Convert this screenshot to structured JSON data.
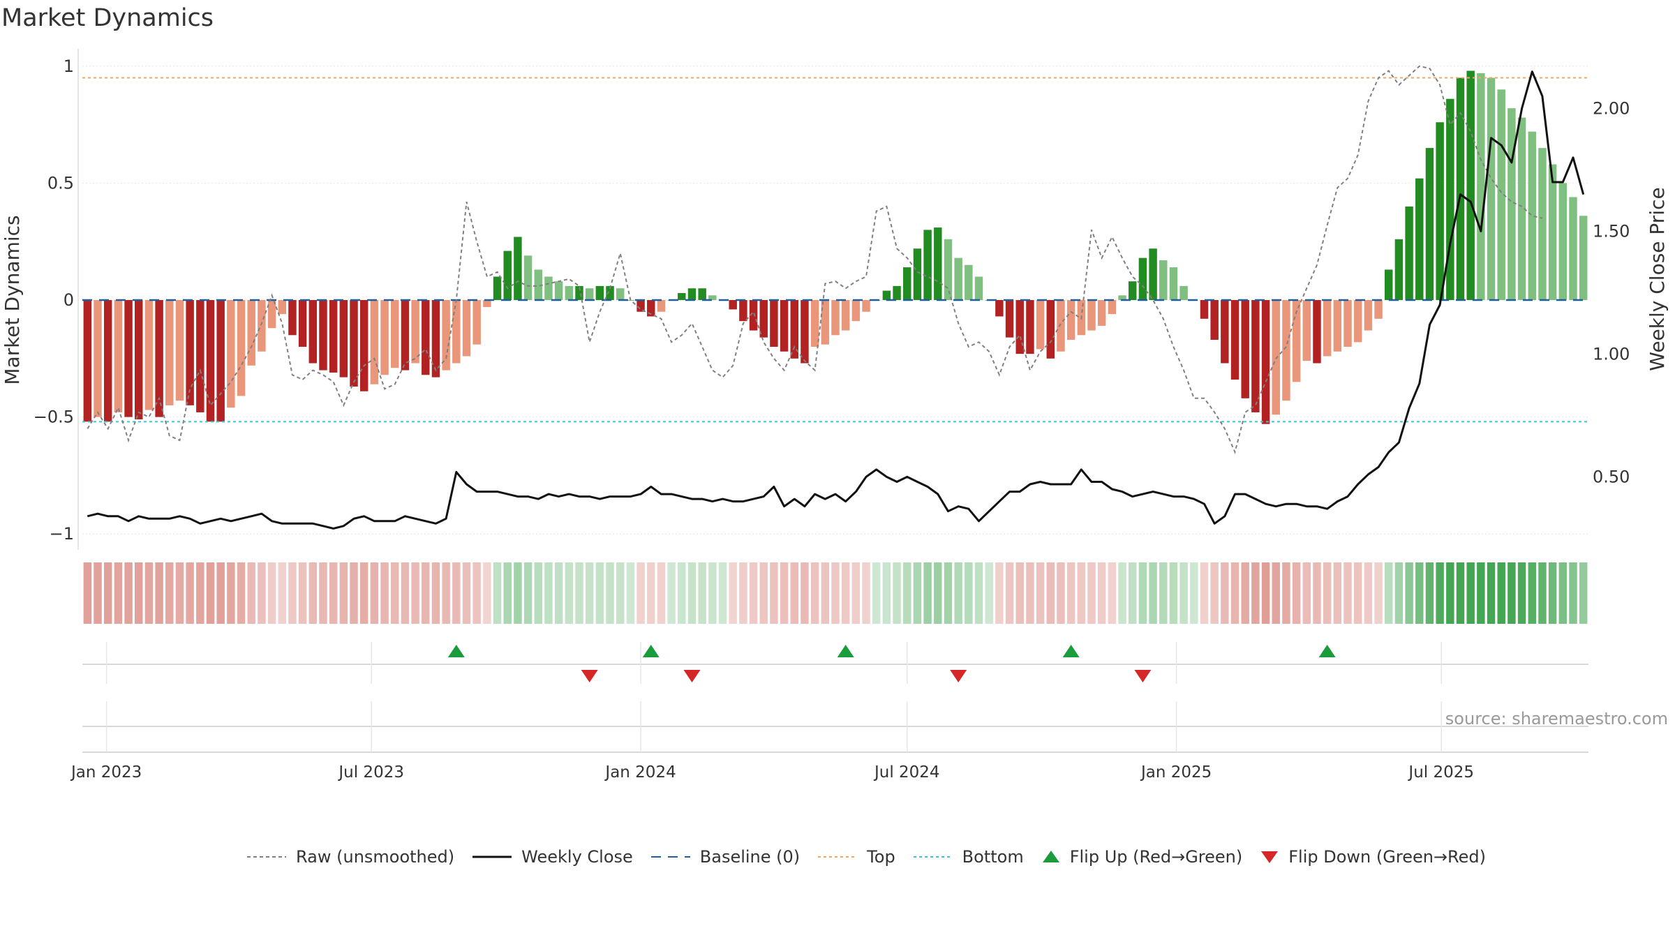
{
  "title": "Market Dynamics",
  "source": "source: sharemaestro.com",
  "colors": {
    "strong_red": "#b22222",
    "light_red": "#e9967a",
    "strong_green": "#228b22",
    "light_green": "#7fbf7f",
    "top_line": "#f4a460",
    "bottom_line": "#40c4d8",
    "baseline": "#1f5f9e",
    "raw": "#808080",
    "close": "#111111",
    "flip_up": "#1a9c3c",
    "flip_down": "#d62728"
  },
  "chart_data": {
    "type": "bar",
    "x_start": "2022-12-19",
    "x_step_days": 7,
    "x_ticks": [
      "Jan 2023",
      "Jul 2023",
      "Jan 2024",
      "Jul 2024",
      "Jan 2025",
      "Jul 2025"
    ],
    "x_tick_dates": [
      "2023-01-01",
      "2023-07-01",
      "2024-01-01",
      "2024-07-01",
      "2025-01-01",
      "2025-07-01"
    ],
    "ylabel_left": "Market Dynamics",
    "ylabel_right": "Weekly Close Price",
    "ylim_left": [
      -1.05,
      1.05
    ],
    "ylim_right": [
      0.22,
      2.22
    ],
    "yticks_left": [
      {
        "value": 1,
        "label": "1"
      },
      {
        "value": 0.5,
        "label": "0.5"
      },
      {
        "value": 0,
        "label": "0"
      },
      {
        "value": -0.5,
        "label": "−0.5"
      },
      {
        "value": -1,
        "label": "−1"
      }
    ],
    "yticks_right": [
      {
        "value": 2.0,
        "label": "2.00"
      },
      {
        "value": 1.5,
        "label": "1.50"
      },
      {
        "value": 1.0,
        "label": "1.00"
      },
      {
        "value": 0.5,
        "label": "0.50"
      }
    ],
    "top_threshold": 0.95,
    "bottom_threshold": -0.52,
    "baseline": 0,
    "dynamics": [
      -0.52,
      -0.5,
      -0.52,
      -0.48,
      -0.5,
      -0.51,
      -0.47,
      -0.5,
      -0.45,
      -0.43,
      -0.45,
      -0.48,
      -0.52,
      -0.52,
      -0.46,
      -0.41,
      -0.28,
      -0.22,
      -0.12,
      -0.06,
      -0.15,
      -0.2,
      -0.27,
      -0.3,
      -0.31,
      -0.33,
      -0.37,
      -0.39,
      -0.36,
      -0.32,
      -0.29,
      -0.3,
      -0.27,
      -0.32,
      -0.33,
      -0.3,
      -0.27,
      -0.24,
      -0.19,
      -0.03,
      0.1,
      0.21,
      0.27,
      0.19,
      0.13,
      0.1,
      0.08,
      0.06,
      0.06,
      0.05,
      0.06,
      0.06,
      0.05,
      0.0,
      -0.05,
      -0.07,
      -0.05,
      0.0,
      0.03,
      0.05,
      0.05,
      0.02,
      0.0,
      -0.04,
      -0.09,
      -0.13,
      -0.16,
      -0.2,
      -0.22,
      -0.25,
      -0.27,
      -0.2,
      -0.19,
      -0.15,
      -0.13,
      -0.09,
      -0.05,
      0.0,
      0.04,
      0.06,
      0.14,
      0.22,
      0.3,
      0.31,
      0.26,
      0.18,
      0.15,
      0.1,
      0.0,
      -0.07,
      -0.16,
      -0.23,
      -0.23,
      -0.21,
      -0.25,
      -0.22,
      -0.17,
      -0.15,
      -0.13,
      -0.11,
      -0.06,
      0.02,
      0.08,
      0.18,
      0.22,
      0.17,
      0.14,
      0.06,
      0.0,
      -0.08,
      -0.17,
      -0.27,
      -0.34,
      -0.42,
      -0.48,
      -0.53,
      -0.49,
      -0.43,
      -0.35,
      -0.26,
      -0.27,
      -0.24,
      -0.22,
      -0.2,
      -0.18,
      -0.13,
      -0.08,
      0.13,
      0.26,
      0.4,
      0.52,
      0.65,
      0.76,
      0.86,
      0.95,
      0.98,
      0.97,
      0.95,
      0.9,
      0.82,
      0.78,
      0.72,
      0.65,
      0.58,
      0.5,
      0.44,
      0.36
    ],
    "raw": [
      -0.55,
      -0.48,
      -0.55,
      -0.46,
      -0.6,
      -0.48,
      -0.5,
      -0.42,
      -0.58,
      -0.6,
      -0.38,
      -0.3,
      -0.45,
      -0.4,
      -0.35,
      -0.28,
      -0.2,
      -0.1,
      0.02,
      -0.1,
      -0.32,
      -0.34,
      -0.3,
      -0.32,
      -0.35,
      -0.45,
      -0.35,
      -0.28,
      -0.25,
      -0.38,
      -0.36,
      -0.27,
      -0.25,
      -0.21,
      -0.3,
      -0.25,
      0.0,
      0.42,
      0.25,
      0.1,
      0.12,
      0.05,
      0.08,
      0.06,
      0.06,
      0.07,
      0.08,
      0.09,
      0.06,
      -0.18,
      -0.05,
      0.05,
      0.2,
      0.0,
      -0.04,
      -0.06,
      -0.08,
      -0.18,
      -0.15,
      -0.1,
      -0.2,
      -0.3,
      -0.33,
      -0.28,
      -0.1,
      -0.05,
      -0.18,
      -0.25,
      -0.3,
      -0.2,
      -0.26,
      -0.3,
      0.07,
      0.08,
      0.05,
      0.08,
      0.1,
      0.38,
      0.4,
      0.22,
      0.18,
      0.12,
      0.1,
      0.08,
      0.05,
      -0.1,
      -0.2,
      -0.18,
      -0.22,
      -0.32,
      -0.2,
      -0.15,
      -0.3,
      -0.22,
      -0.18,
      -0.1,
      -0.05,
      -0.08,
      0.3,
      0.18,
      0.27,
      0.18,
      0.1,
      0.06,
      0.0,
      -0.08,
      -0.2,
      -0.3,
      -0.42,
      -0.42,
      -0.48,
      -0.55,
      -0.65,
      -0.48,
      -0.45,
      -0.35,
      -0.25,
      -0.2,
      -0.05,
      0.05,
      0.15,
      0.32,
      0.48,
      0.52,
      0.62,
      0.85,
      0.95,
      0.98,
      0.92,
      0.96,
      1.0,
      0.99,
      0.92,
      0.75,
      0.8,
      0.72,
      0.6,
      0.52,
      0.46,
      0.42,
      0.4,
      0.36,
      0.35
    ],
    "weekly_close": [
      0.34,
      0.35,
      0.34,
      0.34,
      0.32,
      0.34,
      0.33,
      0.33,
      0.33,
      0.34,
      0.33,
      0.31,
      0.32,
      0.33,
      0.32,
      0.33,
      0.34,
      0.35,
      0.32,
      0.31,
      0.31,
      0.31,
      0.31,
      0.3,
      0.29,
      0.3,
      0.33,
      0.34,
      0.32,
      0.32,
      0.32,
      0.34,
      0.33,
      0.32,
      0.31,
      0.33,
      0.52,
      0.47,
      0.44,
      0.44,
      0.44,
      0.43,
      0.42,
      0.42,
      0.41,
      0.43,
      0.42,
      0.43,
      0.42,
      0.42,
      0.41,
      0.42,
      0.42,
      0.42,
      0.43,
      0.46,
      0.43,
      0.43,
      0.42,
      0.41,
      0.41,
      0.4,
      0.41,
      0.4,
      0.4,
      0.41,
      0.42,
      0.46,
      0.38,
      0.41,
      0.38,
      0.43,
      0.41,
      0.43,
      0.4,
      0.44,
      0.5,
      0.53,
      0.5,
      0.48,
      0.5,
      0.48,
      0.46,
      0.43,
      0.36,
      0.38,
      0.37,
      0.32,
      0.36,
      0.4,
      0.44,
      0.44,
      0.47,
      0.48,
      0.47,
      0.47,
      0.47,
      0.53,
      0.48,
      0.48,
      0.45,
      0.44,
      0.42,
      0.43,
      0.44,
      0.43,
      0.42,
      0.42,
      0.41,
      0.39,
      0.31,
      0.34,
      0.43,
      0.43,
      0.41,
      0.39,
      0.38,
      0.39,
      0.39,
      0.38,
      0.38,
      0.37,
      0.4,
      0.42,
      0.47,
      0.51,
      0.54,
      0.6,
      0.64,
      0.78,
      0.88,
      1.12,
      1.2,
      1.45,
      1.65,
      1.62,
      1.5,
      1.88,
      1.85,
      1.78,
      2.0,
      2.15,
      2.05,
      1.7,
      1.7,
      1.8,
      1.65
    ],
    "flips_up": [
      "2023-08-28",
      "2024-01-08",
      "2024-05-20",
      "2024-10-21",
      "2025-04-14"
    ],
    "flips_down": [
      "2023-11-27",
      "2024-02-05",
      "2024-08-05",
      "2024-12-09"
    ],
    "legend": [
      {
        "label": "Raw (unsmoothed)",
        "type": "dashed-line",
        "color": "#808080"
      },
      {
        "label": "Weekly Close",
        "type": "line",
        "color": "#111111"
      },
      {
        "label": "Baseline (0)",
        "type": "long-dash-line",
        "color": "#1f5f9e"
      },
      {
        "label": "Top",
        "type": "dotted-line",
        "color": "#f4a460"
      },
      {
        "label": "Bottom",
        "type": "dotted-line",
        "color": "#40c4d8"
      },
      {
        "label": "Flip Up (Red→Green)",
        "type": "triangle-up",
        "color": "#1a9c3c"
      },
      {
        "label": "Flip Down (Green→Red)",
        "type": "triangle-down",
        "color": "#d62728"
      }
    ]
  }
}
